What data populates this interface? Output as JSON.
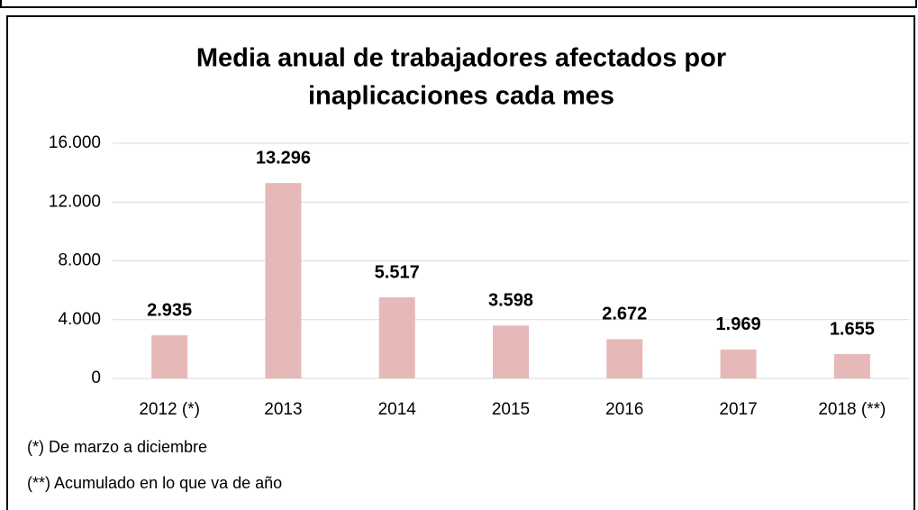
{
  "chart_data": {
    "type": "bar",
    "title": [
      "Media anual de trabajadores afectados por",
      "inaplicaciones cada mes"
    ],
    "categories": [
      "2012 (*)",
      "2013",
      "2014",
      "2015",
      "2016",
      "2017",
      "2018 (**)"
    ],
    "values": [
      2935,
      13296,
      5517,
      3598,
      2672,
      1969,
      1655
    ],
    "value_labels": [
      "2.935",
      "13.296",
      "5.517",
      "3.598",
      "2.672",
      "1.969",
      "1.655"
    ],
    "color": "#e6b8b7",
    "ylim": [
      0,
      16000
    ],
    "yticks": [
      0,
      {
        "value": 4000,
        "label": "4.000"
      },
      {
        "value": 8000,
        "label": "8.000"
      },
      {
        "value": 12000,
        "label": "12.000"
      },
      {
        "value": 16000,
        "label": "16.000"
      }
    ],
    "grid": true,
    "notes": [
      "(*) De marzo a diciembre",
      "(**) Acumulado en lo que va de año"
    ]
  }
}
